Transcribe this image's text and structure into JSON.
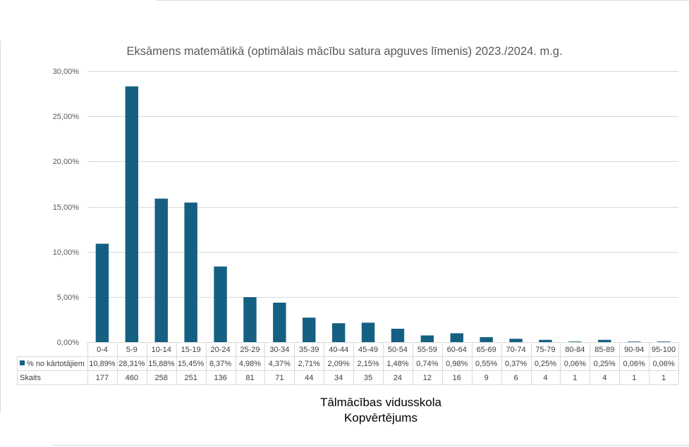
{
  "chart_data": {
    "type": "bar",
    "title": "Eksāmens matemātikā (optimālais mācību satura apguves līmenis) 2023./2024. m.g.",
    "categories": [
      "0-4",
      "5-9",
      "10-14",
      "15-19",
      "20-24",
      "25-29",
      "30-34",
      "35-39",
      "40-44",
      "45-49",
      "50-54",
      "55-59",
      "60-64",
      "65-69",
      "70-74",
      "75-79",
      "80-84",
      "85-89",
      "90-94",
      "95-100"
    ],
    "series": [
      {
        "name": "% no kārtotājiem",
        "values": [
          10.89,
          28.31,
          15.88,
          15.45,
          8.37,
          4.98,
          4.37,
          2.71,
          2.09,
          2.15,
          1.48,
          0.74,
          0.98,
          0.55,
          0.37,
          0.25,
          0.06,
          0.25,
          0.06,
          0.06
        ],
        "labels": [
          "10,89%",
          "28,31%",
          "15,88%",
          "15,45%",
          "8,37%",
          "4,98%",
          "4,37%",
          "2,71%",
          "2,09%",
          "2,15%",
          "1,48%",
          "0,74%",
          "0,98%",
          "0,55%",
          "0,37%",
          "0,25%",
          "0,06%",
          "0,25%",
          "0,06%",
          "0,06%"
        ],
        "color": "#156082"
      }
    ],
    "table_rows": [
      {
        "label": "% no kārtotājiem",
        "has_legend_key": true,
        "cells": [
          "10,89%",
          "28,31%",
          "15,88%",
          "15,45%",
          "8,37%",
          "4,98%",
          "4,37%",
          "2,71%",
          "2,09%",
          "2,15%",
          "1,48%",
          "0,74%",
          "0,98%",
          "0,55%",
          "0,37%",
          "0,25%",
          "0,06%",
          "0,25%",
          "0,06%",
          "0,06%"
        ]
      },
      {
        "label": "Skaits",
        "has_legend_key": false,
        "cells": [
          "177",
          "460",
          "258",
          "251",
          "136",
          "81",
          "71",
          "44",
          "34",
          "35",
          "24",
          "12",
          "16",
          "9",
          "6",
          "4",
          "1",
          "4",
          "1",
          "1"
        ]
      }
    ],
    "ylim": [
      0,
      30
    ],
    "yticks": [
      0,
      5,
      10,
      15,
      20,
      25,
      30
    ],
    "ytick_labels": [
      "0,00%",
      "5,00%",
      "10,00%",
      "15,00%",
      "20,00%",
      "25,00%",
      "30,00%"
    ],
    "grid": true,
    "legend": "data-table"
  },
  "captions": {
    "school": "Tālmācības vidusskola",
    "total": "Kopvērtējums"
  }
}
